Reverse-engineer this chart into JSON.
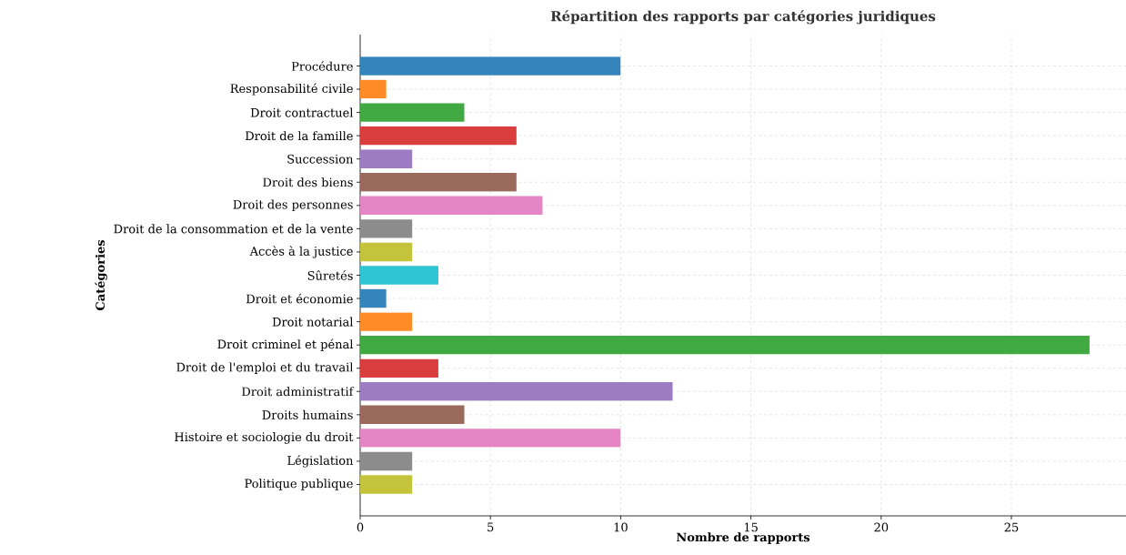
{
  "chart_data": {
    "type": "bar",
    "orientation": "horizontal",
    "title": "Répartition des rapports par catégories juridiques",
    "xlabel": "Nombre de rapports",
    "ylabel": "Catégories",
    "categories": [
      "Procédure",
      "Responsabilité civile",
      "Droit contractuel",
      "Droit de la famille",
      "Succession",
      "Droit des biens",
      "Droit des personnes",
      "Droit de la consommation et de la vente",
      "Accès à la justice",
      "Sûretés",
      "Droit et économie",
      "Droit notarial",
      "Droit criminel et pénal",
      "Droit de l'emploi et du travail",
      "Droit administratif",
      "Droits humains",
      "Histoire et sociologie du droit",
      "Législation",
      "Politique publique"
    ],
    "values": [
      10,
      1,
      4,
      6,
      2,
      6,
      7,
      2,
      2,
      3,
      1,
      2,
      28,
      3,
      12,
      4,
      10,
      2,
      2
    ],
    "colors": [
      "#3584bc",
      "#ff8b26",
      "#41a941",
      "#da3d3e",
      "#9e7cc4",
      "#9a6a5d",
      "#e685c5",
      "#8c8c8c",
      "#c3c43a",
      "#2ec4d4",
      "#3584bc",
      "#ff8b26",
      "#41a941",
      "#da3d3e",
      "#9e7cc4",
      "#9a6a5d",
      "#e685c5",
      "#8c8c8c",
      "#c3c43a"
    ],
    "xlim": [
      0,
      29.4
    ],
    "xticks": [
      0,
      5,
      10,
      15,
      20,
      25
    ],
    "grid": true
  }
}
